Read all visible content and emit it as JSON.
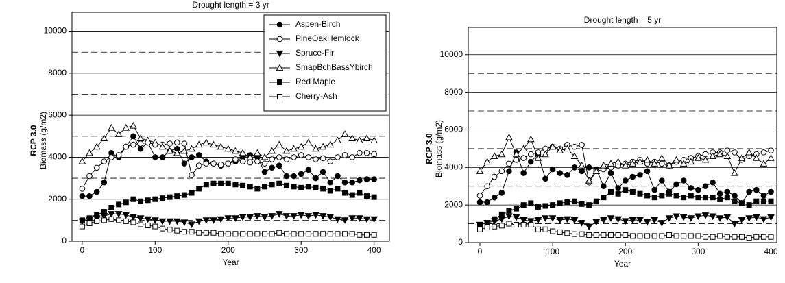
{
  "chart_data": [
    {
      "type": "line",
      "title": "Drought length = 3 yr",
      "ylabel_bold": "RCP 3.0",
      "ylabel": "Biomass (g/m2)",
      "xlabel": "Year",
      "x": [
        0,
        10,
        20,
        30,
        40,
        50,
        60,
        70,
        80,
        90,
        100,
        110,
        120,
        130,
        140,
        150,
        160,
        170,
        180,
        190,
        200,
        210,
        220,
        230,
        240,
        250,
        260,
        270,
        280,
        290,
        300,
        310,
        320,
        330,
        340,
        350,
        360,
        370,
        380,
        390,
        400
      ],
      "xlim": [
        -14,
        421
      ],
      "xticks": [
        0,
        100,
        200,
        300,
        400
      ],
      "ylim": [
        0,
        10900
      ],
      "yticks": [
        0,
        2000,
        4000,
        6000,
        8000,
        10000
      ],
      "grid_minor": [
        1000,
        3000,
        5000,
        7000,
        9000
      ],
      "legend": "top-right",
      "series": [
        {
          "name": "Aspen-Birch",
          "color": "#000000",
          "marker": "circle",
          "filled": true,
          "values": [
            2150,
            2150,
            2350,
            2800,
            4200,
            4000,
            4500,
            5000,
            4400,
            4700,
            4000,
            4000,
            4300,
            4400,
            3700,
            4000,
            4100,
            3800,
            3700,
            3600,
            3700,
            3800,
            4000,
            4100,
            4000,
            3300,
            3500,
            3600,
            3100,
            3100,
            3200,
            3400,
            3000,
            3300,
            2800,
            3100,
            2800,
            2800,
            2900,
            2950,
            2950
          ]
        },
        {
          "name": "PineOakHemlock",
          "color": "#000000",
          "marker": "circle",
          "filled": false,
          "values": [
            2500,
            3100,
            3500,
            3800,
            4000,
            4100,
            4500,
            4600,
            4650,
            4700,
            4600,
            4600,
            4650,
            4700,
            4650,
            3150,
            3600,
            3700,
            3700,
            3650,
            3700,
            3900,
            3800,
            3750,
            3800,
            3700,
            3900,
            4000,
            3900,
            4000,
            4100,
            4000,
            3900,
            3950,
            3800,
            4000,
            4100,
            4000,
            4200,
            4200,
            4150
          ]
        },
        {
          "name": "Spruce-Fir",
          "color": "#000000",
          "marker": "triangle-down",
          "filled": true,
          "values": [
            950,
            1000,
            1100,
            1200,
            1300,
            1300,
            1250,
            1150,
            1100,
            1050,
            1000,
            950,
            950,
            950,
            900,
            800,
            950,
            1000,
            1000,
            1050,
            1100,
            1100,
            1150,
            1150,
            1200,
            1150,
            1200,
            1300,
            1200,
            1200,
            1250,
            1200,
            1250,
            1200,
            1150,
            1050,
            1000,
            1100,
            1100,
            1050,
            1050
          ]
        },
        {
          "name": "SmapBchBassYbirch",
          "color": "#000000",
          "marker": "triangle-up",
          "filled": false,
          "values": [
            3800,
            4200,
            4500,
            4900,
            5400,
            5100,
            5400,
            5500,
            4900,
            4800,
            4700,
            4500,
            4300,
            4200,
            4300,
            4400,
            4600,
            4700,
            4600,
            4500,
            4400,
            4300,
            4200,
            4000,
            4200,
            4000,
            4300,
            4600,
            4300,
            4400,
            4500,
            4700,
            4400,
            4500,
            4600,
            4800,
            5100,
            4900,
            4800,
            4900,
            4800
          ]
        },
        {
          "name": "Red Maple",
          "color": "#000000",
          "marker": "square",
          "filled": true,
          "values": [
            1000,
            1100,
            1250,
            1400,
            1600,
            1750,
            1850,
            2000,
            1900,
            1950,
            2000,
            2050,
            2100,
            2150,
            2200,
            2300,
            2500,
            2700,
            2750,
            2750,
            2750,
            2700,
            2650,
            2600,
            2500,
            2600,
            2700,
            2750,
            2650,
            2600,
            2550,
            2600,
            2550,
            2500,
            2400,
            2500,
            2300,
            2200,
            2300,
            2150,
            2100
          ]
        },
        {
          "name": "Cherry-Ash",
          "color": "#000000",
          "marker": "square",
          "filled": false,
          "values": [
            700,
            850,
            950,
            1000,
            1050,
            1000,
            950,
            900,
            800,
            750,
            700,
            600,
            550,
            500,
            450,
            450,
            400,
            400,
            400,
            350,
            350,
            350,
            350,
            350,
            350,
            350,
            350,
            400,
            350,
            350,
            350,
            350,
            350,
            350,
            350,
            350,
            350,
            350,
            300,
            300,
            300
          ]
        }
      ]
    },
    {
      "type": "line",
      "title": "Drought length = 5 yr",
      "ylabel_bold": "RCP 3.0",
      "ylabel": "Biomass (g/m2)",
      "xlabel": "Year",
      "x": [
        0,
        10,
        20,
        30,
        40,
        50,
        60,
        70,
        80,
        90,
        100,
        110,
        120,
        130,
        140,
        150,
        160,
        170,
        180,
        190,
        200,
        210,
        220,
        230,
        240,
        250,
        260,
        270,
        280,
        290,
        300,
        310,
        320,
        330,
        340,
        350,
        360,
        370,
        380,
        390,
        400
      ],
      "xlim": [
        -16,
        408
      ],
      "xticks": [
        0,
        100,
        200,
        300,
        400
      ],
      "ylim": [
        0,
        11450
      ],
      "yticks": [
        0,
        2000,
        4000,
        6000,
        8000,
        10000
      ],
      "grid_minor": [
        1000,
        3000,
        5000,
        7000,
        9000
      ],
      "series": [
        {
          "color": "#000000",
          "marker": "circle",
          "filled": true,
          "values": [
            2150,
            2150,
            2400,
            2650,
            3800,
            4800,
            3700,
            4300,
            4700,
            3400,
            3900,
            3700,
            3600,
            4000,
            3800,
            4000,
            3900,
            3000,
            3700,
            2900,
            3300,
            3500,
            3600,
            3800,
            2800,
            3300,
            2700,
            3100,
            3300,
            2900,
            2800,
            3000,
            3200,
            2600,
            2700,
            2500,
            2100,
            2700,
            2800,
            2500,
            2700
          ]
        },
        {
          "color": "#000000",
          "marker": "circle",
          "filled": false,
          "values": [
            2500,
            3000,
            3500,
            3800,
            4200,
            4400,
            4500,
            4700,
            4800,
            5000,
            5100,
            5000,
            5200,
            5100,
            5200,
            3200,
            3800,
            3900,
            4000,
            4100,
            4200,
            4300,
            4400,
            4200,
            4300,
            4200,
            4100,
            4300,
            4400,
            4500,
            4600,
            4700,
            4800,
            4800,
            4900,
            4800,
            4400,
            4600,
            4700,
            4800,
            4900
          ]
        },
        {
          "color": "#000000",
          "marker": "triangle-down",
          "filled": true,
          "values": [
            950,
            1050,
            1150,
            1250,
            1400,
            1350,
            1200,
            1150,
            1200,
            1300,
            1300,
            1200,
            1250,
            1200,
            1050,
            850,
            1100,
            1200,
            1300,
            1250,
            1150,
            1200,
            1200,
            1100,
            1200,
            1050,
            1300,
            1400,
            1350,
            1300,
            1400,
            1450,
            1400,
            1300,
            1350,
            1000,
            1200,
            1300,
            1350,
            1250,
            1350
          ]
        },
        {
          "color": "#000000",
          "marker": "triangle-up",
          "filled": false,
          "values": [
            3800,
            4300,
            4600,
            4700,
            5600,
            4700,
            5000,
            5500,
            4500,
            4700,
            5100,
            4900,
            5000,
            4600,
            4100,
            3300,
            3800,
            4100,
            4200,
            4300,
            4100,
            4200,
            4300,
            4400,
            4200,
            4500,
            4100,
            4400,
            4200,
            4300,
            4500,
            4400,
            4600,
            4700,
            4600,
            3700,
            4500,
            4800,
            4500,
            4200,
            4500
          ]
        },
        {
          "color": "#000000",
          "marker": "square",
          "filled": true,
          "values": [
            950,
            1050,
            1250,
            1500,
            1700,
            1800,
            2000,
            2100,
            1900,
            1950,
            2000,
            2100,
            2150,
            2200,
            2050,
            2000,
            2200,
            2400,
            2700,
            2600,
            2800,
            2700,
            2600,
            2500,
            2400,
            2500,
            2600,
            2500,
            2400,
            2500,
            2400,
            2400,
            2400,
            2300,
            2400,
            2200,
            2100,
            2000,
            2200,
            2200,
            2200
          ]
        },
        {
          "color": "#000000",
          "marker": "square",
          "filled": false,
          "values": [
            700,
            800,
            850,
            900,
            1000,
            950,
            950,
            950,
            700,
            700,
            600,
            550,
            500,
            450,
            450,
            400,
            400,
            400,
            400,
            400,
            400,
            350,
            350,
            350,
            350,
            350,
            400,
            350,
            350,
            350,
            350,
            300,
            300,
            350,
            300,
            300,
            300,
            250,
            300,
            300,
            300
          ]
        }
      ]
    }
  ]
}
